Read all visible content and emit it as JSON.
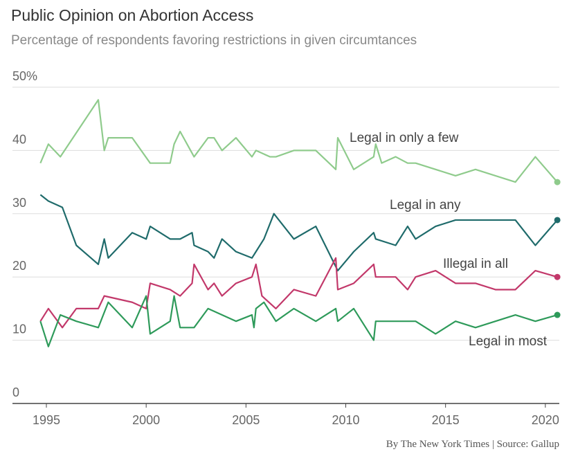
{
  "chart_data": {
    "type": "line",
    "title": "Public Opinion on Abortion Access",
    "subtitle": "Percentage of respondents favoring restrictions in given circumtances",
    "source": "By The New York Times | Source: Gallup",
    "xlim": [
      1993.3,
      2020.7
    ],
    "xticks": [
      1995,
      2000,
      2005,
      2010,
      2015,
      2020
    ],
    "ylim": [
      0,
      50
    ],
    "yticks": [
      0,
      10,
      20,
      30,
      40,
      {
        "value": 50,
        "label": "50%"
      }
    ],
    "grid": true,
    "series": [
      {
        "name": "Legal in only a few",
        "color": "#8fcb8c",
        "x": [
          1994.7,
          1995.1,
          1995.7,
          1997.6,
          1997.9,
          1998.1,
          1999.3,
          2000.2,
          2001.2,
          2001.4,
          2001.7,
          2002.4,
          2003.1,
          2003.4,
          2003.8,
          2004.5,
          2005.3,
          2005.5,
          2006.2,
          2006.5,
          2007.4,
          2008.5,
          2009.5,
          2009.6,
          2010.4,
          2011.4,
          2011.5,
          2011.8,
          2012.5,
          2013.1,
          2013.5,
          2015.5,
          2016.5,
          2018.5,
          2019.5,
          2020.6
        ],
        "values": [
          38,
          41,
          39,
          48,
          40,
          42,
          42,
          38,
          38,
          41,
          43,
          39,
          42,
          42,
          40,
          42,
          39,
          40,
          39,
          39,
          40,
          40,
          37,
          42,
          37,
          39,
          41,
          38,
          39,
          38,
          38,
          36,
          37,
          35,
          39,
          35
        ]
      },
      {
        "name": "Legal in any",
        "color": "#1f6b6b",
        "x": [
          1994.7,
          1995.1,
          1995.8,
          1996.5,
          1997.6,
          1997.9,
          1998.1,
          1999.3,
          2000.0,
          2000.2,
          2001.2,
          2001.7,
          2002.3,
          2002.4,
          2003.1,
          2003.4,
          2003.8,
          2004.5,
          2005.3,
          2005.5,
          2005.9,
          2006.4,
          2007.4,
          2008.5,
          2009.6,
          2010.4,
          2011.4,
          2011.5,
          2012.5,
          2013.1,
          2013.5,
          2014.5,
          2015.5,
          2018.5,
          2019.5,
          2020.6
        ],
        "values": [
          33,
          32,
          31,
          25,
          22,
          26,
          23,
          27,
          26,
          28,
          26,
          26,
          27,
          25,
          24,
          23,
          26,
          24,
          23,
          24,
          26,
          30,
          26,
          28,
          21,
          24,
          27,
          26,
          25,
          28,
          26,
          28,
          29,
          29,
          25,
          29
        ]
      },
      {
        "name": "Illegal in all",
        "color": "#c2386a",
        "x": [
          1994.7,
          1995.1,
          1995.8,
          1996.5,
          1997.6,
          1997.9,
          1999.3,
          2000.0,
          2000.2,
          2001.2,
          2001.7,
          2002.3,
          2002.4,
          2003.1,
          2003.4,
          2003.8,
          2004.5,
          2005.3,
          2005.5,
          2005.8,
          2006.5,
          2007.4,
          2008.5,
          2009.5,
          2009.6,
          2010.4,
          2011.4,
          2011.5,
          2012.5,
          2013.1,
          2013.5,
          2014.5,
          2015.5,
          2016.5,
          2017.5,
          2018.5,
          2019.5,
          2020.6
        ],
        "values": [
          13,
          15,
          12,
          15,
          15,
          17,
          16,
          15,
          19,
          18,
          17,
          19,
          22,
          18,
          19,
          17,
          19,
          20,
          22,
          17,
          15,
          18,
          17,
          23,
          18,
          19,
          22,
          20,
          20,
          18,
          20,
          21,
          19,
          19,
          18,
          18,
          21,
          20
        ]
      },
      {
        "name": "Legal in most",
        "color": "#2e9a5a",
        "x": [
          1994.7,
          1995.1,
          1995.7,
          1996.5,
          1997.6,
          1998.1,
          1999.3,
          2000.0,
          2000.2,
          2001.2,
          2001.4,
          2001.7,
          2002.4,
          2003.1,
          2004.5,
          2005.3,
          2005.4,
          2005.5,
          2005.9,
          2006.5,
          2007.4,
          2008.5,
          2009.5,
          2009.6,
          2010.4,
          2011.4,
          2011.5,
          2013.5,
          2014.5,
          2015.5,
          2016.5,
          2018.5,
          2019.5,
          2020.6
        ],
        "values": [
          13,
          9,
          14,
          13,
          12,
          16,
          12,
          17,
          11,
          13,
          17,
          12,
          12,
          15,
          13,
          14,
          12,
          15,
          16,
          13,
          15,
          13,
          15,
          13,
          15,
          10,
          13,
          13,
          11,
          13,
          12,
          14,
          13,
          14
        ]
      }
    ]
  }
}
